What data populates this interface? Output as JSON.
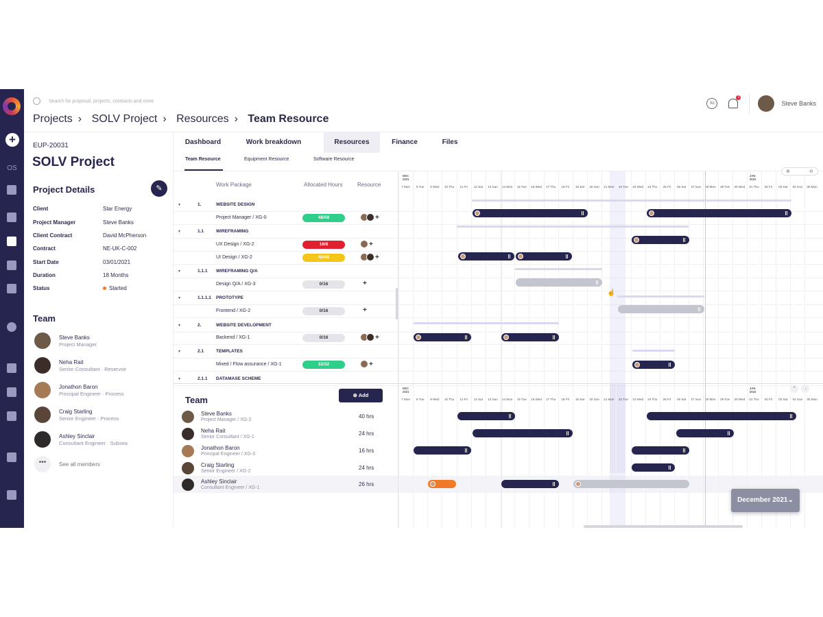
{
  "app": {
    "title": "SOLV Project - Team Resource"
  },
  "search": {
    "placeholder": "Search for proposal, projects, contracts and more"
  },
  "breadcrumb": [
    "Projects",
    "SOLV Project",
    "Resources",
    "Team Resource"
  ],
  "header": {
    "user_name": "Steve Banks",
    "notification_count": "1",
    "xc_label": "Xc"
  },
  "rail": {
    "os_label": "OS"
  },
  "project": {
    "code": "EUP-20031",
    "title": "SOLV Project",
    "details_heading": "Project Details",
    "details": [
      {
        "key": "Client",
        "value": "Star Energy"
      },
      {
        "key": "Project Manager",
        "value": "Steve Banks"
      },
      {
        "key": "Client Contract",
        "value": "David McPherson"
      },
      {
        "key": "Contract",
        "value": "NE-UK-C-002"
      },
      {
        "key": "Start Date",
        "value": "03/01/2021"
      },
      {
        "key": "Duration",
        "value": "18 Months"
      },
      {
        "key": "Status",
        "value": "Started"
      }
    ],
    "status_color": "#f07a2a",
    "team_heading": "Team",
    "team": [
      {
        "name": "Steve Banks",
        "role": "Project Manager"
      },
      {
        "name": "Neha Rait",
        "role": "Senior Consultant · Reservoir"
      },
      {
        "name": "Jonathon Baron",
        "role": "Principal Engineer · Process"
      },
      {
        "name": "Craig Starling",
        "role": "Senior Engineer · Process"
      },
      {
        "name": "Ashley Sinclair",
        "role": "Consultant Engineer · Subsea"
      }
    ],
    "see_all": "See all members"
  },
  "tabs": [
    "Dashboard",
    "Work breakdown",
    "Resources",
    "Finance",
    "Files"
  ],
  "active_tab": "Resources",
  "subtabs": [
    "Team Resource",
    "Equipment Resource",
    "Software Resource"
  ],
  "active_subtab": "Team Resource",
  "table_headers": {
    "work_package": "Work Package",
    "allocated_hours": "Allocated Hours",
    "resource": "Resource"
  },
  "work_rows": [
    {
      "num": "1.",
      "label": "WEBSITE DESIGN",
      "phase": true
    },
    {
      "num": "",
      "label": "Project Manager / XG-0",
      "hours": "48/48",
      "color": "#2fcf8a",
      "avatars": 2
    },
    {
      "num": "1.1",
      "label": "WIREFRAMING",
      "phase": true
    },
    {
      "num": "",
      "label": "UX Design / XG-2",
      "hours": "16/8",
      "color": "#e0202e",
      "avatars": 1
    },
    {
      "num": "",
      "label": "UI Design /  XG-2",
      "hours": "40/48",
      "color": "#f5c518",
      "avatars": 2
    },
    {
      "num": "1.1.1",
      "label": "WIREFRAMING Q/A",
      "phase": true
    },
    {
      "num": "",
      "label": "Design Q/A / XG-3",
      "hours": "0/16",
      "color": "#e4e4ea",
      "avatars": 0
    },
    {
      "num": "1.1.1.1",
      "label": "PROTOTYPE",
      "phase": true
    },
    {
      "num": "",
      "label": "Frontend / XG-2",
      "hours": "0/16",
      "color": "#e4e4ea",
      "avatars": 0
    },
    {
      "num": "2.",
      "label": "WEBSITE DEVELOPMENT",
      "phase": true
    },
    {
      "num": "",
      "label": "Backend / XG-1",
      "hours": "0/16",
      "color": "#e4e4ea",
      "avatars": 2
    },
    {
      "num": "2.1",
      "label": "TEMPLATES",
      "phase": true
    },
    {
      "num": "",
      "label": "Mixed / Flow assurance / XG-1",
      "hours": "32/32",
      "color": "#2fcf8a",
      "avatars": 1
    },
    {
      "num": "2.1.1",
      "label": "DATAMASE SCHEME",
      "phase": true
    }
  ],
  "timeline": {
    "month_start": "DEC\n2021",
    "month_end": "JAN\n2022",
    "days": [
      "7 Mon",
      "8 Tue",
      "9 Wed",
      "10 Thu",
      "11 Fri",
      "12 Sat",
      "13 Sun",
      "14 Mon",
      "15 Tue",
      "16 Wed",
      "17 Thu",
      "18 Fri",
      "19 Sat",
      "20 Sun",
      "21 Mon",
      "22 Tue",
      "23 Wed",
      "24 Thu",
      "25 Fri",
      "26 Sat",
      "27 Sun",
      "28 Mon",
      "29 Tue",
      "30 Wed",
      "01 Thu",
      "02 Fri",
      "03 Sat",
      "04 Sun",
      "05 Mon"
    ]
  },
  "bottom": {
    "heading": "Team",
    "add_label": "Add",
    "members": [
      {
        "name": "Steve Banks",
        "role": "Project Manager / XG-2",
        "hours": "40 hrs"
      },
      {
        "name": "Neha Rait",
        "role": "Senior Consultant / XG-1",
        "hours": "24 hrs"
      },
      {
        "name": "Jonathon Baron",
        "role": "Principal Engineer / XG-3",
        "hours": "16 hrs"
      },
      {
        "name": "Craig Starling",
        "role": "Senior Engineer / XG-2",
        "hours": "24 hrs"
      },
      {
        "name": "Ashley Sinclair",
        "role": "Consultant Engineer / XG-1",
        "hours": "26 hrs"
      }
    ]
  },
  "month_selector": "December 2021",
  "colors": {
    "navy": "#26254f",
    "green": "#2fcf8a",
    "red": "#e0202e",
    "yellow": "#f5c518",
    "orange": "#f07a2a",
    "grey_bar": "#c3c6cf"
  }
}
